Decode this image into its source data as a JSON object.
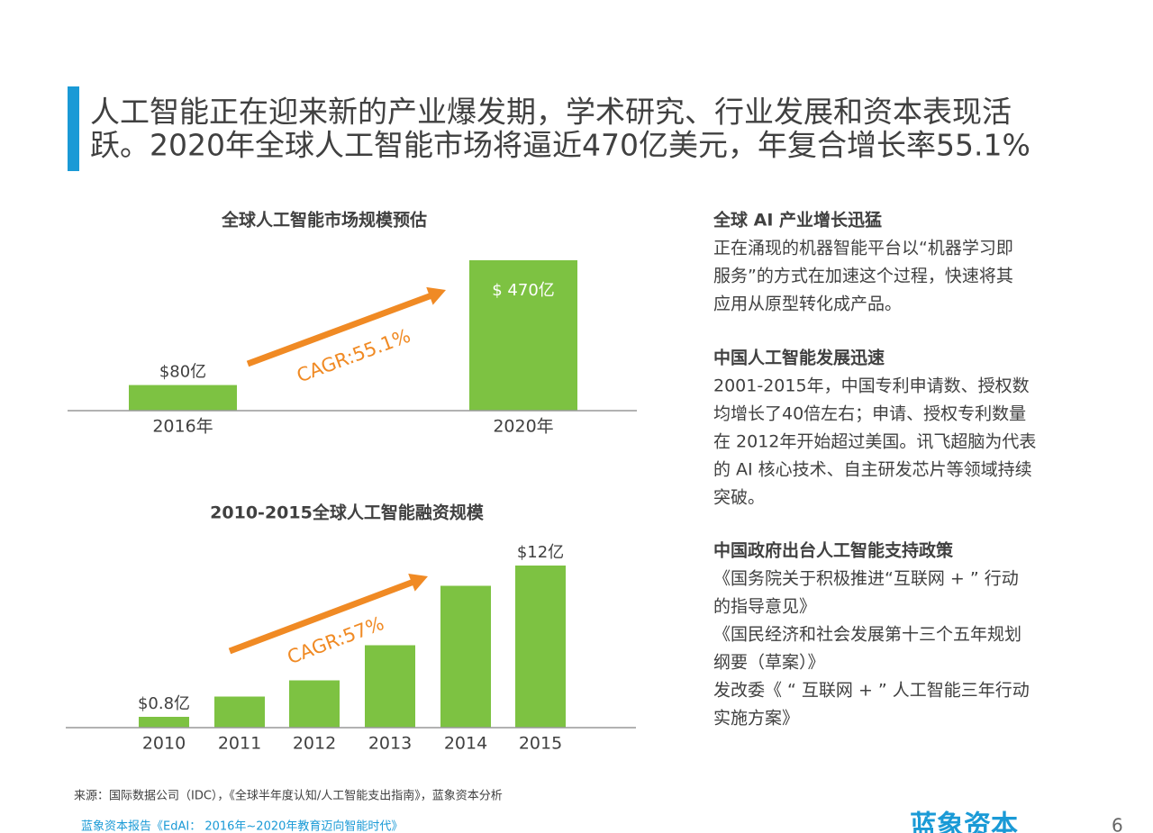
{
  "header": {
    "title_lines": [
      "人工智能正在迎来新的产业爆发期，学术研究、行业发展和资本表现活",
      "跃。2020年全球人工智能市场将逼近470亿美元，年复合增长率55.1%"
    ]
  },
  "chart_data": [
    {
      "type": "bar",
      "title": "全球人工智能市场规模预估",
      "categories": [
        "2016年",
        "2020年"
      ],
      "values": [
        80,
        470
      ],
      "value_labels": [
        "$80亿",
        "$ 470亿"
      ],
      "color": "#7dc242",
      "annotation": "CAGR:55.1%"
    },
    {
      "type": "bar",
      "title": "2010-2015全球人工智能融资规模",
      "categories": [
        "2010",
        "2011",
        "2012",
        "2013",
        "2014",
        "2015"
      ],
      "values": [
        0.8,
        2.3,
        3.5,
        6.1,
        10.5,
        12
      ],
      "value_labels": [
        "$0.8亿",
        null,
        null,
        null,
        null,
        "$12亿"
      ],
      "color": "#7dc242",
      "annotation": "CAGR:57%"
    }
  ],
  "sections": [
    {
      "heading": "全球 AI 产业增长迅猛",
      "lines": [
        "正在涌现的机器智能平台以“机器学习即",
        "服务”的方式在加速这个过程，快速将其",
        "应用从原型转化成产品。"
      ]
    },
    {
      "heading": "中国人工智能发展迅速",
      "lines": [
        "2001-2015年，中国专利申请数、授权数",
        "均增长了40倍左右；申请、授权专利数量",
        "在 2012年开始超过美国。讯飞超脑为代表",
        "的 AI 核心技术、自主研发芯片等领域持续",
        "突破。"
      ]
    },
    {
      "heading": "中国政府出台人工智能支持政策",
      "lines": [
        "《国务院关于积极推进“互联网 + ” 行动",
        "的指导意见》",
        "《国民经济和社会发展第十三个五年规划",
        "纲要（草案）》",
        "发改委《 “ 互联网 + ” 人工智能三年行动",
        "实施方案》"
      ]
    }
  ],
  "footer": {
    "source": "来源：国际数据公司（IDC），《全球半年度认知/人工智能支出指南》，蓝象资本分析",
    "report": "蓝象资本报告《EdAI： 2016年~2020年教育迈向智能时代》",
    "logo": "蓝象资本",
    "page": "6"
  }
}
